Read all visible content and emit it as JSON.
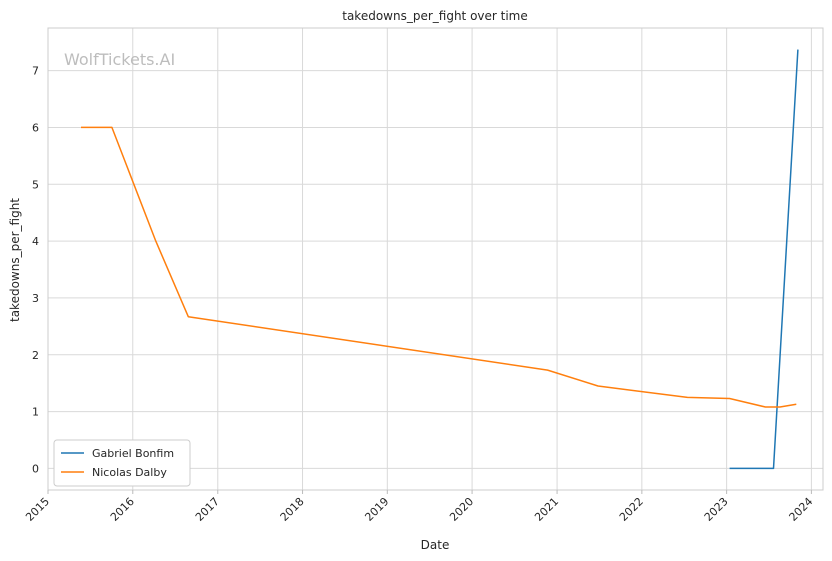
{
  "watermark": "WolfTickets.AI",
  "chart_data": {
    "type": "line",
    "title": "takedowns_per_fight over time",
    "xlabel": "Date",
    "ylabel": "takedowns_per_fight",
    "x_is_date": true,
    "xlim": [
      "2015-01-01",
      "2024-02-20"
    ],
    "ylim": [
      -0.38,
      7.75
    ],
    "x_ticks": [
      "2015",
      "2016",
      "2017",
      "2018",
      "2019",
      "2020",
      "2021",
      "2022",
      "2023",
      "2024"
    ],
    "y_ticks": [
      "0",
      "1",
      "2",
      "3",
      "4",
      "5",
      "6",
      "7"
    ],
    "grid": true,
    "legend_position": "lower-left",
    "series": [
      {
        "name": "Gabriel Bonfim",
        "color": "#1f77b4",
        "x": [
          "2023-01-14",
          "2023-07-22",
          "2023-11-04"
        ],
        "y": [
          0,
          0,
          7.37
        ]
      },
      {
        "name": "Nicolas Dalby",
        "color": "#ff7f0e",
        "x": [
          "2015-05-23",
          "2015-10-03",
          "2016-04-09",
          "2016-08-27",
          "2020-11-21",
          "2021-06-26",
          "2022-07-16",
          "2023-01-14",
          "2023-06-17",
          "2023-08-19",
          "2023-10-28"
        ],
        "y": [
          6.0,
          6.0,
          4.0,
          2.67,
          1.73,
          1.45,
          1.25,
          1.23,
          1.08,
          1.08,
          1.13
        ]
      }
    ]
  }
}
